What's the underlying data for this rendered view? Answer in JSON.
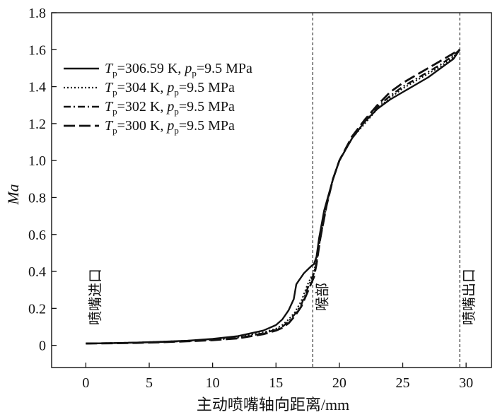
{
  "chart_data": {
    "type": "line",
    "xlabel": "主动喷嘴轴向距离/mm",
    "ylabel": "Ma",
    "xlim": [
      -2.7,
      32
    ],
    "ylim": [
      -0.12,
      1.8
    ],
    "xticks": [
      0,
      5,
      10,
      15,
      20,
      25,
      30
    ],
    "yticks": [
      0,
      0.2,
      0.4,
      0.6,
      0.8,
      1.0,
      1.2,
      1.4,
      1.6,
      1.8
    ],
    "xtick_labels": [
      "0",
      "5",
      "10",
      "15",
      "20",
      "25",
      "30"
    ],
    "ytick_labels": [
      "0",
      "0.2",
      "0.4",
      "0.6",
      "0.8",
      "1.0",
      "1.2",
      "1.4",
      "1.6",
      "1.8"
    ],
    "legend_position": "top-left",
    "reference_lines": [
      {
        "x": 17.9,
        "label": "喉部",
        "style": "dashed"
      },
      {
        "x": 29.5,
        "label": "喷嘴出口",
        "style": "dashed"
      }
    ],
    "annotations": [
      {
        "text": "喷嘴进口",
        "x": 0.0
      }
    ],
    "series": [
      {
        "legend": {
          "T_sym": "T",
          "T_sub": "p",
          "T_val": "=306.59 K,",
          "p_sym": "p",
          "p_sub": "p",
          "p_val": "=9.5 MPa"
        },
        "dash": "",
        "width": 2.4,
        "x": [
          0,
          2,
          4,
          6,
          8,
          10,
          12,
          14,
          15,
          15.5,
          16,
          16.4,
          16.6,
          16.8,
          17.0,
          17.2,
          17.5,
          17.8,
          18.0,
          18.2,
          18.4,
          18.8,
          19.5,
          20,
          21,
          22,
          23,
          24,
          25,
          26,
          27,
          28,
          29,
          29.5
        ],
        "y": [
          0.01,
          0.012,
          0.015,
          0.02,
          0.025,
          0.035,
          0.05,
          0.08,
          0.11,
          0.14,
          0.19,
          0.25,
          0.33,
          0.35,
          0.37,
          0.39,
          0.41,
          0.43,
          0.44,
          0.48,
          0.58,
          0.73,
          0.9,
          1.0,
          1.12,
          1.21,
          1.28,
          1.33,
          1.37,
          1.41,
          1.45,
          1.5,
          1.55,
          1.6
        ]
      },
      {
        "legend": {
          "T_sym": "T",
          "T_sub": "p",
          "T_val": "=304 K,",
          "p_sym": "p",
          "p_sub": "p",
          "p_val": "=9.5 MPa"
        },
        "dash": "2 3",
        "width": 2.2,
        "x": [
          0,
          2,
          4,
          6,
          8,
          10,
          12,
          14,
          15,
          15.5,
          16,
          16.5,
          17.0,
          17.5,
          18.0,
          18.2,
          18.5,
          19,
          19.5,
          20,
          21,
          22,
          23,
          24,
          25,
          26,
          27,
          28,
          29,
          29.5
        ],
        "y": [
          0.01,
          0.012,
          0.015,
          0.02,
          0.025,
          0.033,
          0.045,
          0.07,
          0.09,
          0.11,
          0.14,
          0.18,
          0.24,
          0.33,
          0.4,
          0.46,
          0.58,
          0.76,
          0.9,
          1.0,
          1.12,
          1.2,
          1.28,
          1.34,
          1.39,
          1.43,
          1.47,
          1.51,
          1.56,
          1.6
        ]
      },
      {
        "legend": {
          "T_sym": "T",
          "T_sub": "p",
          "T_val": "=302 K,",
          "p_sym": "p",
          "p_sub": "p",
          "p_val": "=9.5 MPa"
        },
        "dash": "10 4 2 4",
        "width": 2.4,
        "x": [
          0,
          2,
          4,
          6,
          8,
          10,
          12,
          14,
          15,
          15.5,
          16,
          16.5,
          17.0,
          17.5,
          18.0,
          18.2,
          18.5,
          19,
          19.5,
          20,
          21,
          22,
          23,
          24,
          25,
          26,
          27,
          28,
          29,
          29.5
        ],
        "y": [
          0.01,
          0.012,
          0.015,
          0.018,
          0.023,
          0.03,
          0.04,
          0.065,
          0.085,
          0.1,
          0.13,
          0.17,
          0.22,
          0.31,
          0.39,
          0.45,
          0.58,
          0.76,
          0.9,
          1.0,
          1.12,
          1.21,
          1.29,
          1.35,
          1.4,
          1.44,
          1.48,
          1.52,
          1.57,
          1.6
        ]
      },
      {
        "legend": {
          "T_sym": "T",
          "T_sub": "p",
          "T_val": "=300 K,",
          "p_sym": "p",
          "p_sub": "p",
          "p_val": "=9.5 MPa"
        },
        "dash": "16 6",
        "width": 2.8,
        "x": [
          0,
          2,
          4,
          6,
          8,
          10,
          12,
          14,
          15,
          15.5,
          16,
          16.5,
          17.0,
          17.5,
          18.0,
          18.2,
          18.5,
          19,
          19.5,
          20,
          21,
          22,
          23,
          24,
          25,
          26,
          27,
          28,
          29,
          29.5
        ],
        "y": [
          0.01,
          0.011,
          0.013,
          0.017,
          0.022,
          0.028,
          0.038,
          0.06,
          0.08,
          0.095,
          0.12,
          0.16,
          0.21,
          0.29,
          0.37,
          0.44,
          0.58,
          0.76,
          0.9,
          1.0,
          1.13,
          1.22,
          1.3,
          1.37,
          1.42,
          1.46,
          1.5,
          1.54,
          1.58,
          1.6
        ]
      }
    ]
  }
}
